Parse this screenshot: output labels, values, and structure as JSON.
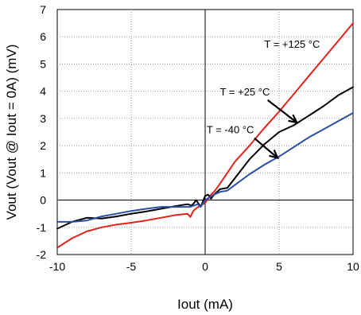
{
  "chart_data": {
    "type": "line",
    "xlabel": "Iout (mA)",
    "ylabel": "Vout    (Vout @ Iout = 0A) (mV)",
    "xlim": [
      -10,
      10
    ],
    "ylim": [
      -2,
      7
    ],
    "xticks": [
      -10,
      -5,
      0,
      5,
      10
    ],
    "yticks": [
      -2,
      -1,
      0,
      1,
      2,
      3,
      4,
      5,
      6,
      7
    ],
    "xtick_labels": [
      "-10",
      "-5",
      "0",
      "5",
      "10"
    ],
    "ytick_labels": [
      "-2",
      "-1",
      "0",
      "1",
      "2",
      "3",
      "4",
      "5",
      "6",
      "7"
    ],
    "grid": "dotted",
    "series": [
      {
        "color": "#e0231c",
        "points": [
          [
            -10,
            -1.75
          ],
          [
            -9,
            -1.4
          ],
          [
            -8,
            -1.15
          ],
          [
            -7,
            -1.0
          ],
          [
            -6,
            -0.9
          ],
          [
            -5,
            -0.83
          ],
          [
            -4,
            -0.75
          ],
          [
            -3,
            -0.65
          ],
          [
            -2,
            -0.55
          ],
          [
            -1.2,
            -0.5
          ],
          [
            -1,
            -0.62
          ],
          [
            -0.8,
            -0.4
          ],
          [
            -0.6,
            -0.3
          ],
          [
            -0.3,
            -0.2
          ],
          [
            0,
            -0.1
          ],
          [
            0.2,
            0.05
          ],
          [
            0.4,
            0.2
          ],
          [
            0.6,
            0.3
          ],
          [
            0.8,
            0.45
          ],
          [
            1,
            0.6
          ],
          [
            1.5,
            1.0
          ],
          [
            2,
            1.4
          ],
          [
            3,
            2.0
          ],
          [
            4,
            2.65
          ],
          [
            5,
            3.25
          ],
          [
            6,
            3.9
          ],
          [
            7,
            4.55
          ],
          [
            8,
            5.2
          ],
          [
            9,
            5.85
          ],
          [
            10,
            6.5
          ]
        ]
      },
      {
        "color": "#000000",
        "points": [
          [
            -10,
            -1.05
          ],
          [
            -9,
            -0.8
          ],
          [
            -8,
            -0.65
          ],
          [
            -7,
            -0.68
          ],
          [
            -6,
            -0.6
          ],
          [
            -5,
            -0.5
          ],
          [
            -4,
            -0.42
          ],
          [
            -3,
            -0.32
          ],
          [
            -2,
            -0.22
          ],
          [
            -1.2,
            -0.15
          ],
          [
            -0.9,
            -0.2
          ],
          [
            -0.6,
            0.0
          ],
          [
            -0.3,
            -0.25
          ],
          [
            0,
            0.15
          ],
          [
            0.2,
            0.2
          ],
          [
            0.4,
            0.05
          ],
          [
            0.6,
            0.2
          ],
          [
            0.8,
            0.3
          ],
          [
            1,
            0.4
          ],
          [
            1.5,
            0.45
          ],
          [
            2,
            0.8
          ],
          [
            3,
            1.5
          ],
          [
            4,
            2.05
          ],
          [
            5,
            2.5
          ],
          [
            6,
            2.75
          ],
          [
            7,
            3.1
          ],
          [
            8,
            3.45
          ],
          [
            9,
            3.85
          ],
          [
            10,
            4.15
          ]
        ]
      },
      {
        "color": "#2a4ea0",
        "points": [
          [
            -10,
            -0.8
          ],
          [
            -9,
            -0.8
          ],
          [
            -8,
            -0.75
          ],
          [
            -7,
            -0.6
          ],
          [
            -6,
            -0.5
          ],
          [
            -5,
            -0.4
          ],
          [
            -4,
            -0.32
          ],
          [
            -3,
            -0.25
          ],
          [
            -2,
            -0.25
          ],
          [
            -1,
            -0.25
          ],
          [
            -0.5,
            -0.15
          ],
          [
            -0.3,
            -0.25
          ],
          [
            0,
            0.0
          ],
          [
            0.3,
            0.1
          ],
          [
            0.6,
            0.2
          ],
          [
            1,
            0.3
          ],
          [
            1.5,
            0.35
          ],
          [
            2,
            0.55
          ],
          [
            3,
            0.95
          ],
          [
            4,
            1.3
          ],
          [
            5,
            1.6
          ],
          [
            6,
            1.95
          ],
          [
            7,
            2.3
          ],
          [
            8,
            2.6
          ],
          [
            9,
            2.9
          ],
          [
            10,
            3.2
          ]
        ]
      }
    ],
    "annotations": [
      {
        "text": "T = +125 °C",
        "x": 4.0,
        "y": 5.6
      },
      {
        "text": "T = +25 °C",
        "arrow_to": [
          6.2,
          2.85
        ],
        "x": 1.0,
        "y": 3.85
      },
      {
        "text": "T = -40 °C",
        "arrow_to": [
          4.9,
          1.55
        ],
        "x": 0.1,
        "y": 2.45
      }
    ]
  }
}
